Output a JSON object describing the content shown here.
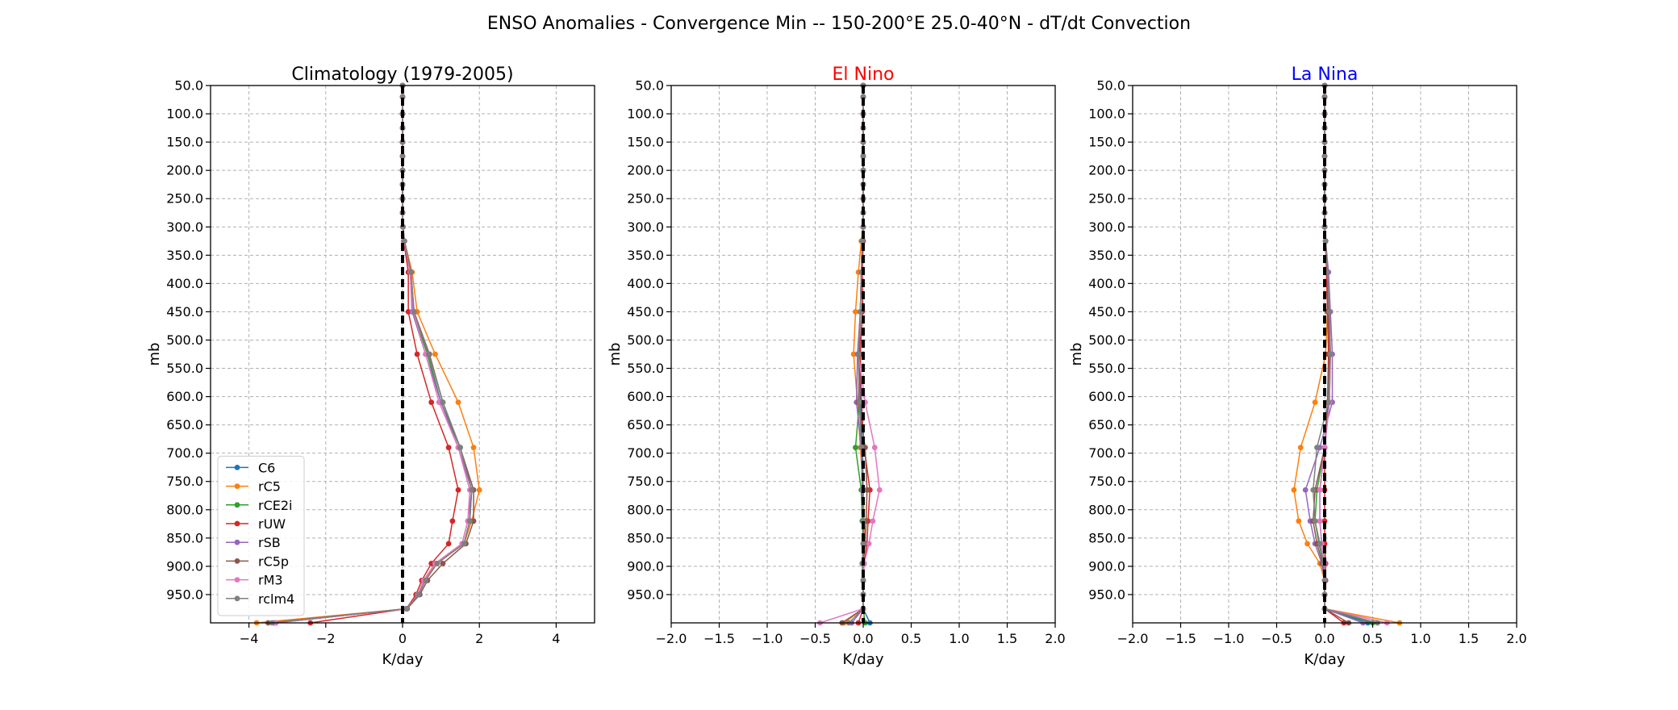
{
  "suptitle": "ENSO Anomalies - Convergence Min -- 150-200°E 25.0-40°N - dT/dt Convection",
  "colors": {
    "C6": "#1f77b4",
    "rC5": "#ff7f0e",
    "rCE2i": "#2ca02c",
    "rUW": "#d62728",
    "rSB": "#9467bd",
    "rC5p": "#8c564b",
    "rM3": "#e377c2",
    "rclm4": "#7f7f7f",
    "grid": "#b0b0b0",
    "zero_line": "#000000",
    "el_nino_title": "#ff0000",
    "la_nina_title": "#0000ff"
  },
  "chart_data": [
    {
      "type": "line",
      "title": "Climatology (1979-2005)",
      "title_color": "#000000",
      "xlabel": "K/day",
      "ylabel": "mb",
      "xlim": [
        -5,
        5
      ],
      "ylim": [
        50,
        1000
      ],
      "y_inverted": true,
      "grid": true,
      "xticks": [
        -4,
        -2,
        0,
        2,
        4
      ],
      "xtick_labels": [
        "−4",
        "−2",
        "0",
        "2",
        "4"
      ],
      "yticks": [
        50,
        100,
        150,
        200,
        250,
        300,
        350,
        400,
        450,
        500,
        550,
        600,
        650,
        700,
        750,
        800,
        850,
        900,
        950
      ],
      "ytick_labels": [
        "50.0",
        "100.0",
        "150.0",
        "200.0",
        "250.0",
        "300.0",
        "350.0",
        "400.0",
        "450.0",
        "500.0",
        "550.0",
        "600.0",
        "650.0",
        "700.0",
        "750.0",
        "800.0",
        "850.0",
        "900.0",
        "950.0"
      ],
      "legend": {
        "placement": "lower-left",
        "entries": [
          "C6",
          "rC5",
          "rCE2i",
          "rUW",
          "rSB",
          "rC5p",
          "rM3",
          "rclm4"
        ]
      },
      "levels": [
        50,
        70,
        100,
        125,
        150,
        175,
        200,
        225,
        250,
        275,
        300,
        325,
        380,
        450,
        525,
        610,
        690,
        765,
        820,
        860,
        895,
        925,
        950,
        975,
        1000
      ],
      "series": [
        {
          "name": "C6",
          "values": [
            0,
            0,
            0,
            0,
            0,
            0,
            0,
            0,
            0,
            0,
            0.01,
            0.04,
            0.2,
            0.28,
            0.65,
            1.0,
            1.5,
            1.8,
            1.75,
            1.6,
            0.85,
            0.55,
            0.4,
            0.1,
            -3.3
          ]
        },
        {
          "name": "rC5",
          "values": [
            0,
            0,
            0,
            0,
            0,
            0,
            0,
            0,
            0,
            0,
            0.01,
            0.05,
            0.25,
            0.38,
            0.85,
            1.45,
            1.85,
            2.0,
            1.8,
            1.6,
            0.9,
            0.55,
            0.4,
            0.12,
            -3.8
          ]
        },
        {
          "name": "rCE2i",
          "values": [
            0,
            0,
            0,
            0,
            0,
            0,
            0,
            0,
            0,
            0,
            0.01,
            0.04,
            0.2,
            0.28,
            0.65,
            1.0,
            1.5,
            1.8,
            1.75,
            1.6,
            0.85,
            0.55,
            0.4,
            0.1,
            -3.35
          ]
        },
        {
          "name": "rUW",
          "values": [
            0,
            0,
            0,
            0,
            0,
            0,
            0,
            0,
            0,
            0,
            0.01,
            0.03,
            0.15,
            0.15,
            0.38,
            0.75,
            1.2,
            1.45,
            1.3,
            1.2,
            0.75,
            0.5,
            0.35,
            0.1,
            -2.4
          ]
        },
        {
          "name": "rSB",
          "values": [
            0,
            0,
            0,
            0,
            0,
            0,
            0,
            0,
            0,
            0,
            0.01,
            0.04,
            0.2,
            0.25,
            0.6,
            1.0,
            1.45,
            1.8,
            1.7,
            1.55,
            0.85,
            0.55,
            0.4,
            0.1,
            -3.3
          ]
        },
        {
          "name": "rC5p",
          "values": [
            0,
            0,
            0,
            0,
            0,
            0,
            0,
            0,
            0,
            0,
            0.01,
            0.05,
            0.22,
            0.3,
            0.7,
            1.05,
            1.5,
            1.85,
            1.85,
            1.65,
            1.05,
            0.65,
            0.45,
            0.12,
            -3.5
          ]
        },
        {
          "name": "rM3",
          "values": [
            0,
            0,
            0,
            0,
            0,
            0,
            0,
            0,
            0,
            0,
            0.01,
            0.04,
            0.2,
            0.28,
            0.6,
            0.95,
            1.45,
            1.75,
            1.7,
            1.55,
            0.85,
            0.55,
            0.4,
            0.1,
            -3.3
          ]
        },
        {
          "name": "rclm4",
          "values": [
            0,
            0,
            0,
            0,
            0,
            0,
            0,
            0,
            0,
            0,
            0.01,
            0.05,
            0.22,
            0.3,
            0.68,
            1.05,
            1.5,
            1.8,
            1.75,
            1.6,
            0.9,
            0.6,
            0.42,
            0.1,
            -3.4
          ]
        }
      ]
    },
    {
      "type": "line",
      "title": "El Nino",
      "title_color": "#ff0000",
      "xlabel": "K/day",
      "ylabel": "mb",
      "xlim": [
        -2,
        2
      ],
      "ylim": [
        50,
        1000
      ],
      "y_inverted": true,
      "grid": true,
      "xticks": [
        -2,
        -1.5,
        -1,
        -0.5,
        0,
        0.5,
        1,
        1.5,
        2
      ],
      "xtick_labels": [
        "−2.0",
        "−1.5",
        "−1.0",
        "−0.5",
        "0.0",
        "0.5",
        "1.0",
        "1.5",
        "2.0"
      ],
      "yticks": [
        50,
        100,
        150,
        200,
        250,
        300,
        350,
        400,
        450,
        500,
        550,
        600,
        650,
        700,
        750,
        800,
        850,
        900,
        950
      ],
      "ytick_labels": [
        "50.0",
        "100.0",
        "150.0",
        "200.0",
        "250.0",
        "300.0",
        "350.0",
        "400.0",
        "450.0",
        "500.0",
        "550.0",
        "600.0",
        "650.0",
        "700.0",
        "750.0",
        "800.0",
        "850.0",
        "900.0",
        "950.0"
      ],
      "levels": [
        50,
        70,
        100,
        125,
        150,
        175,
        200,
        225,
        250,
        275,
        300,
        325,
        380,
        450,
        525,
        610,
        690,
        765,
        820,
        860,
        895,
        925,
        950,
        975,
        1000
      ],
      "series": [
        {
          "name": "C6",
          "values": [
            0,
            0,
            0,
            0,
            0,
            0,
            0,
            0,
            0,
            0,
            0,
            -0.01,
            -0.02,
            -0.03,
            -0.04,
            -0.03,
            -0.01,
            0,
            0,
            0.01,
            0,
            0,
            0,
            0,
            0.07
          ]
        },
        {
          "name": "rC5",
          "values": [
            0,
            0,
            0,
            0,
            0,
            0,
            0,
            0,
            0,
            0,
            0,
            -0.02,
            -0.05,
            -0.08,
            -0.1,
            -0.06,
            -0.03,
            0,
            0.01,
            0.02,
            0,
            0,
            0,
            0,
            -0.2
          ]
        },
        {
          "name": "rCE2i",
          "values": [
            0,
            0,
            0,
            0,
            0,
            0,
            0,
            0,
            0,
            0,
            0,
            -0.01,
            -0.02,
            -0.03,
            -0.05,
            -0.04,
            -0.08,
            -0.02,
            -0.01,
            0,
            -0.01,
            0,
            0,
            0,
            0.02
          ]
        },
        {
          "name": "rUW",
          "values": [
            0,
            0,
            0,
            0,
            0,
            0,
            0,
            0,
            0,
            0,
            0,
            0,
            -0.01,
            -0.01,
            -0.03,
            -0.02,
            0.01,
            0.07,
            0.05,
            0.04,
            0.01,
            0,
            0,
            0,
            -0.05
          ]
        },
        {
          "name": "rSB",
          "values": [
            0,
            0,
            0,
            0,
            0,
            0,
            0,
            0,
            0,
            0,
            0,
            -0.01,
            -0.02,
            -0.03,
            -0.06,
            -0.07,
            -0.02,
            -0.01,
            0,
            0.01,
            -0.01,
            0,
            0,
            0,
            -0.12
          ]
        },
        {
          "name": "rC5p",
          "values": [
            0,
            0,
            0,
            0,
            0,
            0,
            0,
            0,
            0,
            0,
            0,
            -0.01,
            -0.02,
            -0.03,
            -0.04,
            -0.05,
            0.02,
            0.04,
            0.03,
            0.02,
            0,
            0,
            0,
            0,
            -0.22
          ]
        },
        {
          "name": "rM3",
          "values": [
            0,
            0,
            0,
            0,
            0,
            0,
            0,
            0,
            0,
            0,
            0,
            -0.01,
            -0.02,
            -0.03,
            -0.05,
            0.02,
            0.12,
            0.17,
            0.1,
            0.06,
            0.01,
            0,
            0,
            0,
            -0.45
          ]
        },
        {
          "name": "rclm4",
          "values": [
            0,
            0,
            0,
            0,
            0,
            0,
            0,
            0,
            0,
            0,
            0,
            -0.01,
            -0.02,
            -0.03,
            -0.05,
            -0.04,
            -0.02,
            0,
            0,
            0,
            -0.01,
            0,
            0,
            0,
            -0.15
          ]
        }
      ]
    },
    {
      "type": "line",
      "title": "La Nina",
      "title_color": "#0000ff",
      "xlabel": "K/day",
      "ylabel": "mb",
      "xlim": [
        -2,
        2
      ],
      "ylim": [
        50,
        1000
      ],
      "y_inverted": true,
      "grid": true,
      "xticks": [
        -2,
        -1.5,
        -1,
        -0.5,
        0,
        0.5,
        1,
        1.5,
        2
      ],
      "xtick_labels": [
        "−2.0",
        "−1.5",
        "−1.0",
        "−0.5",
        "0.0",
        "0.5",
        "1.0",
        "1.5",
        "2.0"
      ],
      "yticks": [
        50,
        100,
        150,
        200,
        250,
        300,
        350,
        400,
        450,
        500,
        550,
        600,
        650,
        700,
        750,
        800,
        850,
        900,
        950
      ],
      "ytick_labels": [
        "50.0",
        "100.0",
        "150.0",
        "200.0",
        "250.0",
        "300.0",
        "350.0",
        "400.0",
        "450.0",
        "500.0",
        "550.0",
        "600.0",
        "650.0",
        "700.0",
        "750.0",
        "800.0",
        "850.0",
        "900.0",
        "950.0"
      ],
      "levels": [
        50,
        70,
        100,
        125,
        150,
        175,
        200,
        225,
        250,
        275,
        300,
        325,
        380,
        450,
        525,
        610,
        690,
        765,
        820,
        860,
        895,
        925,
        950,
        975,
        1000
      ],
      "series": [
        {
          "name": "C6",
          "values": [
            0,
            0,
            0,
            0,
            0,
            0,
            0,
            0,
            0,
            0,
            0,
            0.01,
            0.03,
            0.04,
            0.05,
            0.04,
            0,
            -0.05,
            -0.05,
            -0.03,
            0,
            0,
            0,
            0,
            0.45
          ]
        },
        {
          "name": "rC5",
          "values": [
            0,
            0,
            0,
            0,
            0,
            0,
            0,
            0,
            0,
            0,
            0,
            0.01,
            0.02,
            0.03,
            0.01,
            -0.1,
            -0.25,
            -0.32,
            -0.27,
            -0.18,
            -0.05,
            0,
            0,
            0,
            0.78
          ]
        },
        {
          "name": "rCE2i",
          "values": [
            0,
            0,
            0,
            0,
            0,
            0,
            0,
            0,
            0,
            0,
            0,
            0.01,
            0.03,
            0.04,
            0.06,
            0.05,
            0,
            -0.08,
            -0.1,
            -0.06,
            -0.01,
            0,
            0,
            0,
            0.5
          ]
        },
        {
          "name": "rUW",
          "values": [
            0,
            0,
            0,
            0,
            0,
            0,
            0,
            0,
            0,
            0,
            0,
            0.01,
            0.02,
            0.03,
            0.04,
            0.03,
            0,
            0,
            0,
            0,
            0.01,
            0.01,
            0,
            0,
            0.2
          ]
        },
        {
          "name": "rSB",
          "values": [
            0,
            0,
            0,
            0,
            0,
            0,
            0,
            0,
            0,
            0,
            0,
            0.01,
            0.04,
            0.06,
            0.08,
            0.08,
            -0.05,
            -0.2,
            -0.15,
            -0.1,
            -0.03,
            0,
            0,
            0,
            0.4
          ]
        },
        {
          "name": "rC5p",
          "values": [
            0,
            0,
            0,
            0,
            0,
            0,
            0,
            0,
            0,
            0,
            0,
            0.01,
            0.03,
            0.04,
            0.05,
            0.03,
            0,
            -0.1,
            -0.12,
            -0.08,
            -0.02,
            0,
            0,
            0,
            0.25
          ]
        },
        {
          "name": "rM3",
          "values": [
            0,
            0,
            0,
            0,
            0,
            0,
            0,
            0,
            0,
            0,
            0,
            0.01,
            0.03,
            0.05,
            0.06,
            0.05,
            0,
            -0.05,
            -0.05,
            -0.03,
            0,
            0,
            0,
            0,
            0.65
          ]
        },
        {
          "name": "rclm4",
          "values": [
            0,
            0,
            0,
            0,
            0,
            0,
            0,
            0,
            0,
            0,
            0,
            0.01,
            0.03,
            0.05,
            0.06,
            0.04,
            -0.08,
            -0.12,
            -0.1,
            -0.05,
            -0.01,
            0,
            0,
            0,
            0.55
          ]
        }
      ]
    }
  ]
}
